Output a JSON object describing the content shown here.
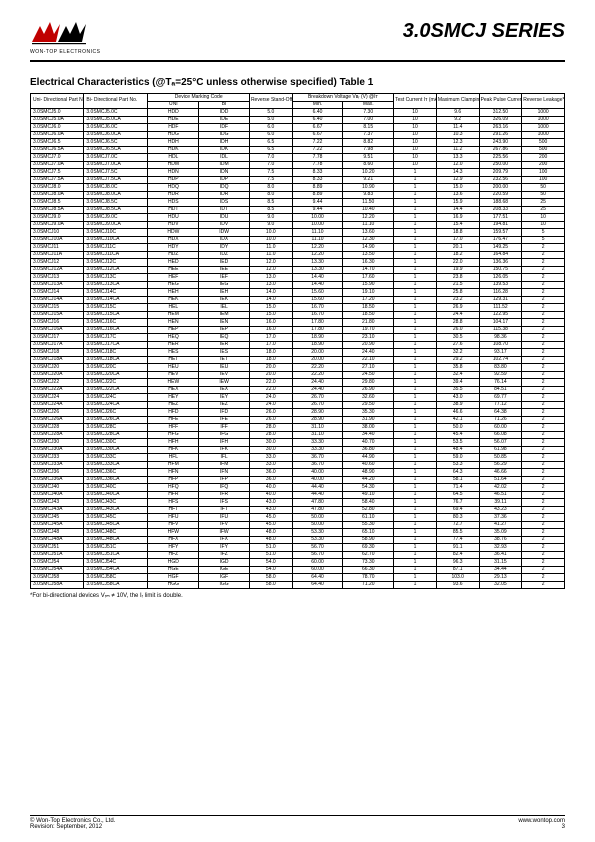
{
  "logo_caption": "WON-TOP ELECTRONICS",
  "series_title": "3.0SMCJ SERIES",
  "section_title": "Electrical Characteristics (@Tₐ=25°C unless otherwise specified) Table 1",
  "footnote": "*For bi-directional devices Vᵣₘ ≠ 10V, the Iᵣ limit is double.",
  "footer_left_1": "© Won-Top Electronics Co., Ltd.",
  "footer_left_2": "Revision: September, 2012",
  "footer_right_1": "www.wontop.com",
  "footer_right_2": "3",
  "headers": {
    "uni": "Uni-\nDirectional\nPart No.",
    "bi": "Bi-\nDirectional\nPart No.",
    "marking": "Device\nMarking Code",
    "marking_uni": "UNI",
    "marking_bi": "BI",
    "vrwm": "Reverse\nStand-Off\nVoltage\nVᵣₘ (V)",
    "vbr": "Breakdown Voltage\nVʙᵣ (V) @Iᴛ",
    "vbr_min": "Min.",
    "vbr_max": "Max.",
    "it": "Test\nCurrent\nIᴛ (mA)",
    "vc": "Maximum\nClamping\nVoltage @Iᴘᴘ\nVᴄ (V)",
    "ipp": "Peak Pulse\nCurrent\nIᴘᴘ (A)",
    "ir": "Reverse\nLeakage*\n@Vᵣₘ\nIᵣ (µA)"
  },
  "groups": [
    [
      [
        "3.0SMCJ5.0",
        "3.0SMCJ5.0C",
        "HDD",
        "IDD",
        "5.0",
        "6.40",
        "7.30",
        "10",
        "9.6",
        "312.50",
        "1000"
      ],
      [
        "3.0SMCJ5.0A",
        "3.0SMCJ5.0CA",
        "HDE",
        "IDE",
        "5.0",
        "6.40",
        "7.00",
        "10",
        "9.2",
        "326.09",
        "1000"
      ],
      [
        "3.0SMCJ6.0",
        "3.0SMCJ6.0C",
        "HDF",
        "IDF",
        "6.0",
        "6.67",
        "8.15",
        "10",
        "11.4",
        "263.16",
        "1000"
      ],
      [
        "3.0SMCJ6.0A",
        "3.0SMCJ6.0CA",
        "HDG",
        "IDG",
        "6.0",
        "6.67",
        "7.37",
        "10",
        "10.3",
        "291.26",
        "1000"
      ]
    ],
    [
      [
        "3.0SMCJ6.5",
        "3.0SMCJ6.5C",
        "HDH",
        "IDH",
        "6.5",
        "7.22",
        "8.82",
        "10",
        "12.3",
        "243.90",
        "500"
      ],
      [
        "3.0SMCJ6.5A",
        "3.0SMCJ6.5CA",
        "HDK",
        "IDK",
        "6.5",
        "7.22",
        "7.98",
        "10",
        "11.2",
        "267.86",
        "500"
      ],
      [
        "3.0SMCJ7.0",
        "3.0SMCJ7.0C",
        "HDL",
        "IDL",
        "7.0",
        "7.78",
        "9.51",
        "10",
        "13.3",
        "225.56",
        "200"
      ],
      [
        "3.0SMCJ7.0A",
        "3.0SMCJ7.0CA",
        "HDM",
        "IDM",
        "7.0",
        "7.78",
        "8.60",
        "10",
        "12.0",
        "250.00",
        "200"
      ]
    ],
    [
      [
        "3.0SMCJ7.5",
        "3.0SMCJ7.5C",
        "HDN",
        "IDN",
        "7.5",
        "8.33",
        "10.20",
        "1",
        "14.3",
        "209.79",
        "100"
      ],
      [
        "3.0SMCJ7.5A",
        "3.0SMCJ7.5CA",
        "HDP",
        "IDP",
        "7.5",
        "8.33",
        "9.21",
        "1",
        "12.9",
        "232.56",
        "100"
      ],
      [
        "3.0SMCJ8.0",
        "3.0SMCJ8.0C",
        "HDQ",
        "IDQ",
        "8.0",
        "8.89",
        "10.90",
        "1",
        "15.0",
        "200.00",
        "50"
      ],
      [
        "3.0SMCJ8.0A",
        "3.0SMCJ8.0CA",
        "HDR",
        "IDR",
        "8.0",
        "8.89",
        "9.83",
        "1",
        "13.6",
        "220.59",
        "50"
      ]
    ],
    [
      [
        "3.0SMCJ8.5",
        "3.0SMCJ8.5C",
        "HDS",
        "IDS",
        "8.5",
        "9.44",
        "11.50",
        "1",
        "15.9",
        "188.68",
        "25"
      ],
      [
        "3.0SMCJ8.5A",
        "3.0SMCJ8.5CA",
        "HDT",
        "IDT",
        "8.5",
        "9.44",
        "10.40",
        "1",
        "14.4",
        "208.33",
        "25"
      ],
      [
        "3.0SMCJ9.0",
        "3.0SMCJ9.0C",
        "HDU",
        "IDU",
        "9.0",
        "10.00",
        "12.20",
        "1",
        "16.9",
        "177.51",
        "10"
      ],
      [
        "3.0SMCJ9.0A",
        "3.0SMCJ9.0CA",
        "HDV",
        "IDV",
        "9.0",
        "10.00",
        "11.10",
        "1",
        "15.4",
        "194.81",
        "10"
      ]
    ],
    [
      [
        "3.0SMCJ10",
        "3.0SMCJ10C",
        "HDW",
        "IDW",
        "10.0",
        "11.10",
        "13.60",
        "1",
        "18.8",
        "159.57",
        "5"
      ],
      [
        "3.0SMCJ10A",
        "3.0SMCJ10CA",
        "HDX",
        "IDX",
        "10.0",
        "11.10",
        "12.30",
        "1",
        "17.0",
        "176.47",
        "5"
      ],
      [
        "3.0SMCJ11",
        "3.0SMCJ11C",
        "HDY",
        "IDY",
        "11.0",
        "12.20",
        "14.90",
        "1",
        "20.1",
        "149.25",
        "2"
      ],
      [
        "3.0SMCJ11A",
        "3.0SMCJ11CA",
        "HDZ",
        "IDZ",
        "11.0",
        "12.20",
        "13.50",
        "1",
        "18.2",
        "164.84",
        "2"
      ]
    ],
    [
      [
        "3.0SMCJ12",
        "3.0SMCJ12C",
        "HED",
        "IED",
        "12.0",
        "13.30",
        "16.30",
        "1",
        "22.0",
        "136.36",
        "2"
      ],
      [
        "3.0SMCJ12A",
        "3.0SMCJ12CA",
        "HEE",
        "IEE",
        "12.0",
        "13.30",
        "14.70",
        "1",
        "19.9",
        "150.75",
        "2"
      ],
      [
        "3.0SMCJ13",
        "3.0SMCJ13C",
        "HEF",
        "IEF",
        "13.0",
        "14.40",
        "17.60",
        "1",
        "23.8",
        "126.05",
        "2"
      ],
      [
        "3.0SMCJ13A",
        "3.0SMCJ13CA",
        "HEG",
        "IEG",
        "13.0",
        "14.40",
        "15.90",
        "1",
        "21.5",
        "139.53",
        "2"
      ]
    ],
    [
      [
        "3.0SMCJ14",
        "3.0SMCJ14C",
        "HEH",
        "IEH",
        "14.0",
        "15.60",
        "19.10",
        "1",
        "25.8",
        "116.28",
        "2"
      ],
      [
        "3.0SMCJ14A",
        "3.0SMCJ14CA",
        "HEK",
        "IEK",
        "14.0",
        "15.60",
        "17.20",
        "1",
        "23.2",
        "129.31",
        "2"
      ],
      [
        "3.0SMCJ15",
        "3.0SMCJ15C",
        "HEL",
        "IEL",
        "15.0",
        "16.70",
        "18.50",
        "1",
        "26.9",
        "111.52",
        "2"
      ],
      [
        "3.0SMCJ15A",
        "3.0SMCJ15CA",
        "HEM",
        "IEM",
        "15.0",
        "16.70",
        "18.50",
        "1",
        "24.4",
        "122.95",
        "2"
      ]
    ],
    [
      [
        "3.0SMCJ16",
        "3.0SMCJ16C",
        "HEN",
        "IEN",
        "16.0",
        "17.80",
        "21.80",
        "1",
        "28.8",
        "104.17",
        "2"
      ],
      [
        "3.0SMCJ16A",
        "3.0SMCJ16CA",
        "HEP",
        "IEP",
        "16.0",
        "17.80",
        "19.70",
        "1",
        "26.0",
        "115.38",
        "2"
      ],
      [
        "3.0SMCJ17",
        "3.0SMCJ17C",
        "HEQ",
        "IEQ",
        "17.0",
        "18.90",
        "23.10",
        "1",
        "30.5",
        "98.36",
        "2"
      ],
      [
        "3.0SMCJ17A",
        "3.0SMCJ17CA",
        "HER",
        "IER",
        "17.0",
        "18.90",
        "20.90",
        "1",
        "27.6",
        "108.70",
        "2"
      ]
    ],
    [
      [
        "3.0SMCJ18",
        "3.0SMCJ18C",
        "HES",
        "IES",
        "18.0",
        "20.00",
        "24.40",
        "1",
        "32.2",
        "93.17",
        "2"
      ],
      [
        "3.0SMCJ18A",
        "3.0SMCJ18CA",
        "HET",
        "IET",
        "18.0",
        "20.00",
        "22.10",
        "1",
        "29.2",
        "102.74",
        "2"
      ],
      [
        "3.0SMCJ20",
        "3.0SMCJ20C",
        "HEU",
        "IEU",
        "20.0",
        "22.20",
        "27.10",
        "1",
        "35.8",
        "83.80",
        "2"
      ],
      [
        "3.0SMCJ20A",
        "3.0SMCJ20CA",
        "HEV",
        "IEV",
        "20.0",
        "22.20",
        "24.50",
        "1",
        "32.4",
        "92.59",
        "2"
      ]
    ],
    [
      [
        "3.0SMCJ22",
        "3.0SMCJ22C",
        "HEW",
        "IEW",
        "22.0",
        "24.40",
        "29.80",
        "1",
        "39.4",
        "76.14",
        "2"
      ],
      [
        "3.0SMCJ22A",
        "3.0SMCJ22CA",
        "HEX",
        "IEX",
        "22.0",
        "24.40",
        "26.90",
        "1",
        "35.5",
        "84.51",
        "2"
      ],
      [
        "3.0SMCJ24",
        "3.0SMCJ24C",
        "HEY",
        "IEY",
        "24.0",
        "26.70",
        "32.60",
        "1",
        "43.0",
        "69.77",
        "2"
      ],
      [
        "3.0SMCJ24A",
        "3.0SMCJ24CA",
        "HEZ",
        "IEZ",
        "24.0",
        "26.70",
        "29.50",
        "1",
        "38.9",
        "77.12",
        "2"
      ]
    ],
    [
      [
        "3.0SMCJ26",
        "3.0SMCJ26C",
        "HFD",
        "IFD",
        "26.0",
        "28.90",
        "35.30",
        "1",
        "46.6",
        "64.38",
        "2"
      ],
      [
        "3.0SMCJ26A",
        "3.0SMCJ26CA",
        "HFE",
        "IFE",
        "26.0",
        "28.90",
        "31.90",
        "1",
        "42.1",
        "71.26",
        "2"
      ],
      [
        "3.0SMCJ28",
        "3.0SMCJ28C",
        "HFF",
        "IFF",
        "28.0",
        "31.10",
        "38.00",
        "1",
        "50.0",
        "60.00",
        "2"
      ],
      [
        "3.0SMCJ28A",
        "3.0SMCJ28CA",
        "HFG",
        "IFG",
        "28.0",
        "31.10",
        "34.40",
        "1",
        "45.4",
        "66.08",
        "2"
      ]
    ],
    [
      [
        "3.0SMCJ30",
        "3.0SMCJ30C",
        "HFH",
        "IFH",
        "30.0",
        "33.30",
        "40.70",
        "1",
        "53.5",
        "56.07",
        "2"
      ],
      [
        "3.0SMCJ30A",
        "3.0SMCJ30CA",
        "HFK",
        "IFK",
        "30.0",
        "33.30",
        "36.80",
        "1",
        "48.4",
        "61.98",
        "2"
      ],
      [
        "3.0SMCJ33",
        "3.0SMCJ33C",
        "HFL",
        "IFL",
        "33.0",
        "36.70",
        "44.90",
        "1",
        "59.0",
        "50.85",
        "2"
      ],
      [
        "3.0SMCJ33A",
        "3.0SMCJ33CA",
        "HFM",
        "IFM",
        "33.0",
        "36.70",
        "40.60",
        "1",
        "53.3",
        "56.29",
        "2"
      ]
    ],
    [
      [
        "3.0SMCJ36",
        "3.0SMCJ36C",
        "HFN",
        "IFN",
        "36.0",
        "40.00",
        "48.90",
        "1",
        "64.3",
        "46.66",
        "2"
      ],
      [
        "3.0SMCJ36A",
        "3.0SMCJ36CA",
        "HFP",
        "IFP",
        "36.0",
        "40.00",
        "44.20",
        "1",
        "58.1",
        "51.64",
        "2"
      ],
      [
        "3.0SMCJ40",
        "3.0SMCJ40C",
        "HFQ",
        "IFQ",
        "40.0",
        "44.40",
        "54.30",
        "1",
        "71.4",
        "42.02",
        "2"
      ],
      [
        "3.0SMCJ40A",
        "3.0SMCJ40CA",
        "HFR",
        "IFR",
        "40.0",
        "44.40",
        "49.10",
        "1",
        "64.5",
        "46.51",
        "2"
      ]
    ],
    [
      [
        "3.0SMCJ43",
        "3.0SMCJ43C",
        "HFS",
        "IFS",
        "43.0",
        "47.80",
        "58.40",
        "1",
        "76.7",
        "39.11",
        "2"
      ],
      [
        "3.0SMCJ43A",
        "3.0SMCJ43CA",
        "HFT",
        "IFT",
        "43.0",
        "47.80",
        "52.80",
        "1",
        "69.4",
        "43.23",
        "2"
      ],
      [
        "3.0SMCJ45",
        "3.0SMCJ45C",
        "HFU",
        "IFU",
        "45.0",
        "50.00",
        "61.10",
        "1",
        "80.3",
        "37.36",
        "2"
      ],
      [
        "3.0SMCJ45A",
        "3.0SMCJ45CA",
        "HFV",
        "IFV",
        "45.0",
        "50.00",
        "55.30",
        "1",
        "72.7",
        "41.27",
        "2"
      ]
    ],
    [
      [
        "3.0SMCJ48",
        "3.0SMCJ48C",
        "HFW",
        "IFW",
        "48.0",
        "53.30",
        "65.10",
        "1",
        "85.5",
        "35.09",
        "2"
      ],
      [
        "3.0SMCJ48A",
        "3.0SMCJ48CA",
        "HFX",
        "IFX",
        "48.0",
        "53.30",
        "58.90",
        "1",
        "77.4",
        "38.76",
        "2"
      ],
      [
        "3.0SMCJ51",
        "3.0SMCJ51C",
        "HFY",
        "IFY",
        "51.0",
        "56.70",
        "69.30",
        "1",
        "91.1",
        "32.93",
        "2"
      ],
      [
        "3.0SMCJ51A",
        "3.0SMCJ51CA",
        "HFZ",
        "IFZ",
        "51.0",
        "56.70",
        "62.70",
        "1",
        "82.4",
        "36.41",
        "2"
      ]
    ],
    [
      [
        "3.0SMCJ54",
        "3.0SMCJ54C",
        "HGD",
        "IGD",
        "54.0",
        "60.00",
        "73.30",
        "1",
        "96.3",
        "31.15",
        "2"
      ],
      [
        "3.0SMCJ54A",
        "3.0SMCJ54CA",
        "HGE",
        "IGE",
        "54.0",
        "60.00",
        "66.30",
        "1",
        "87.1",
        "34.44",
        "2"
      ],
      [
        "3.0SMCJ58",
        "3.0SMCJ58C",
        "HGF",
        "IGF",
        "58.0",
        "64.40",
        "78.70",
        "1",
        "103.0",
        "29.13",
        "2"
      ],
      [
        "3.0SMCJ58A",
        "3.0SMCJ58CA",
        "HGG",
        "IGG",
        "58.0",
        "64.40",
        "71.20",
        "1",
        "93.6",
        "32.05",
        "2"
      ]
    ]
  ]
}
